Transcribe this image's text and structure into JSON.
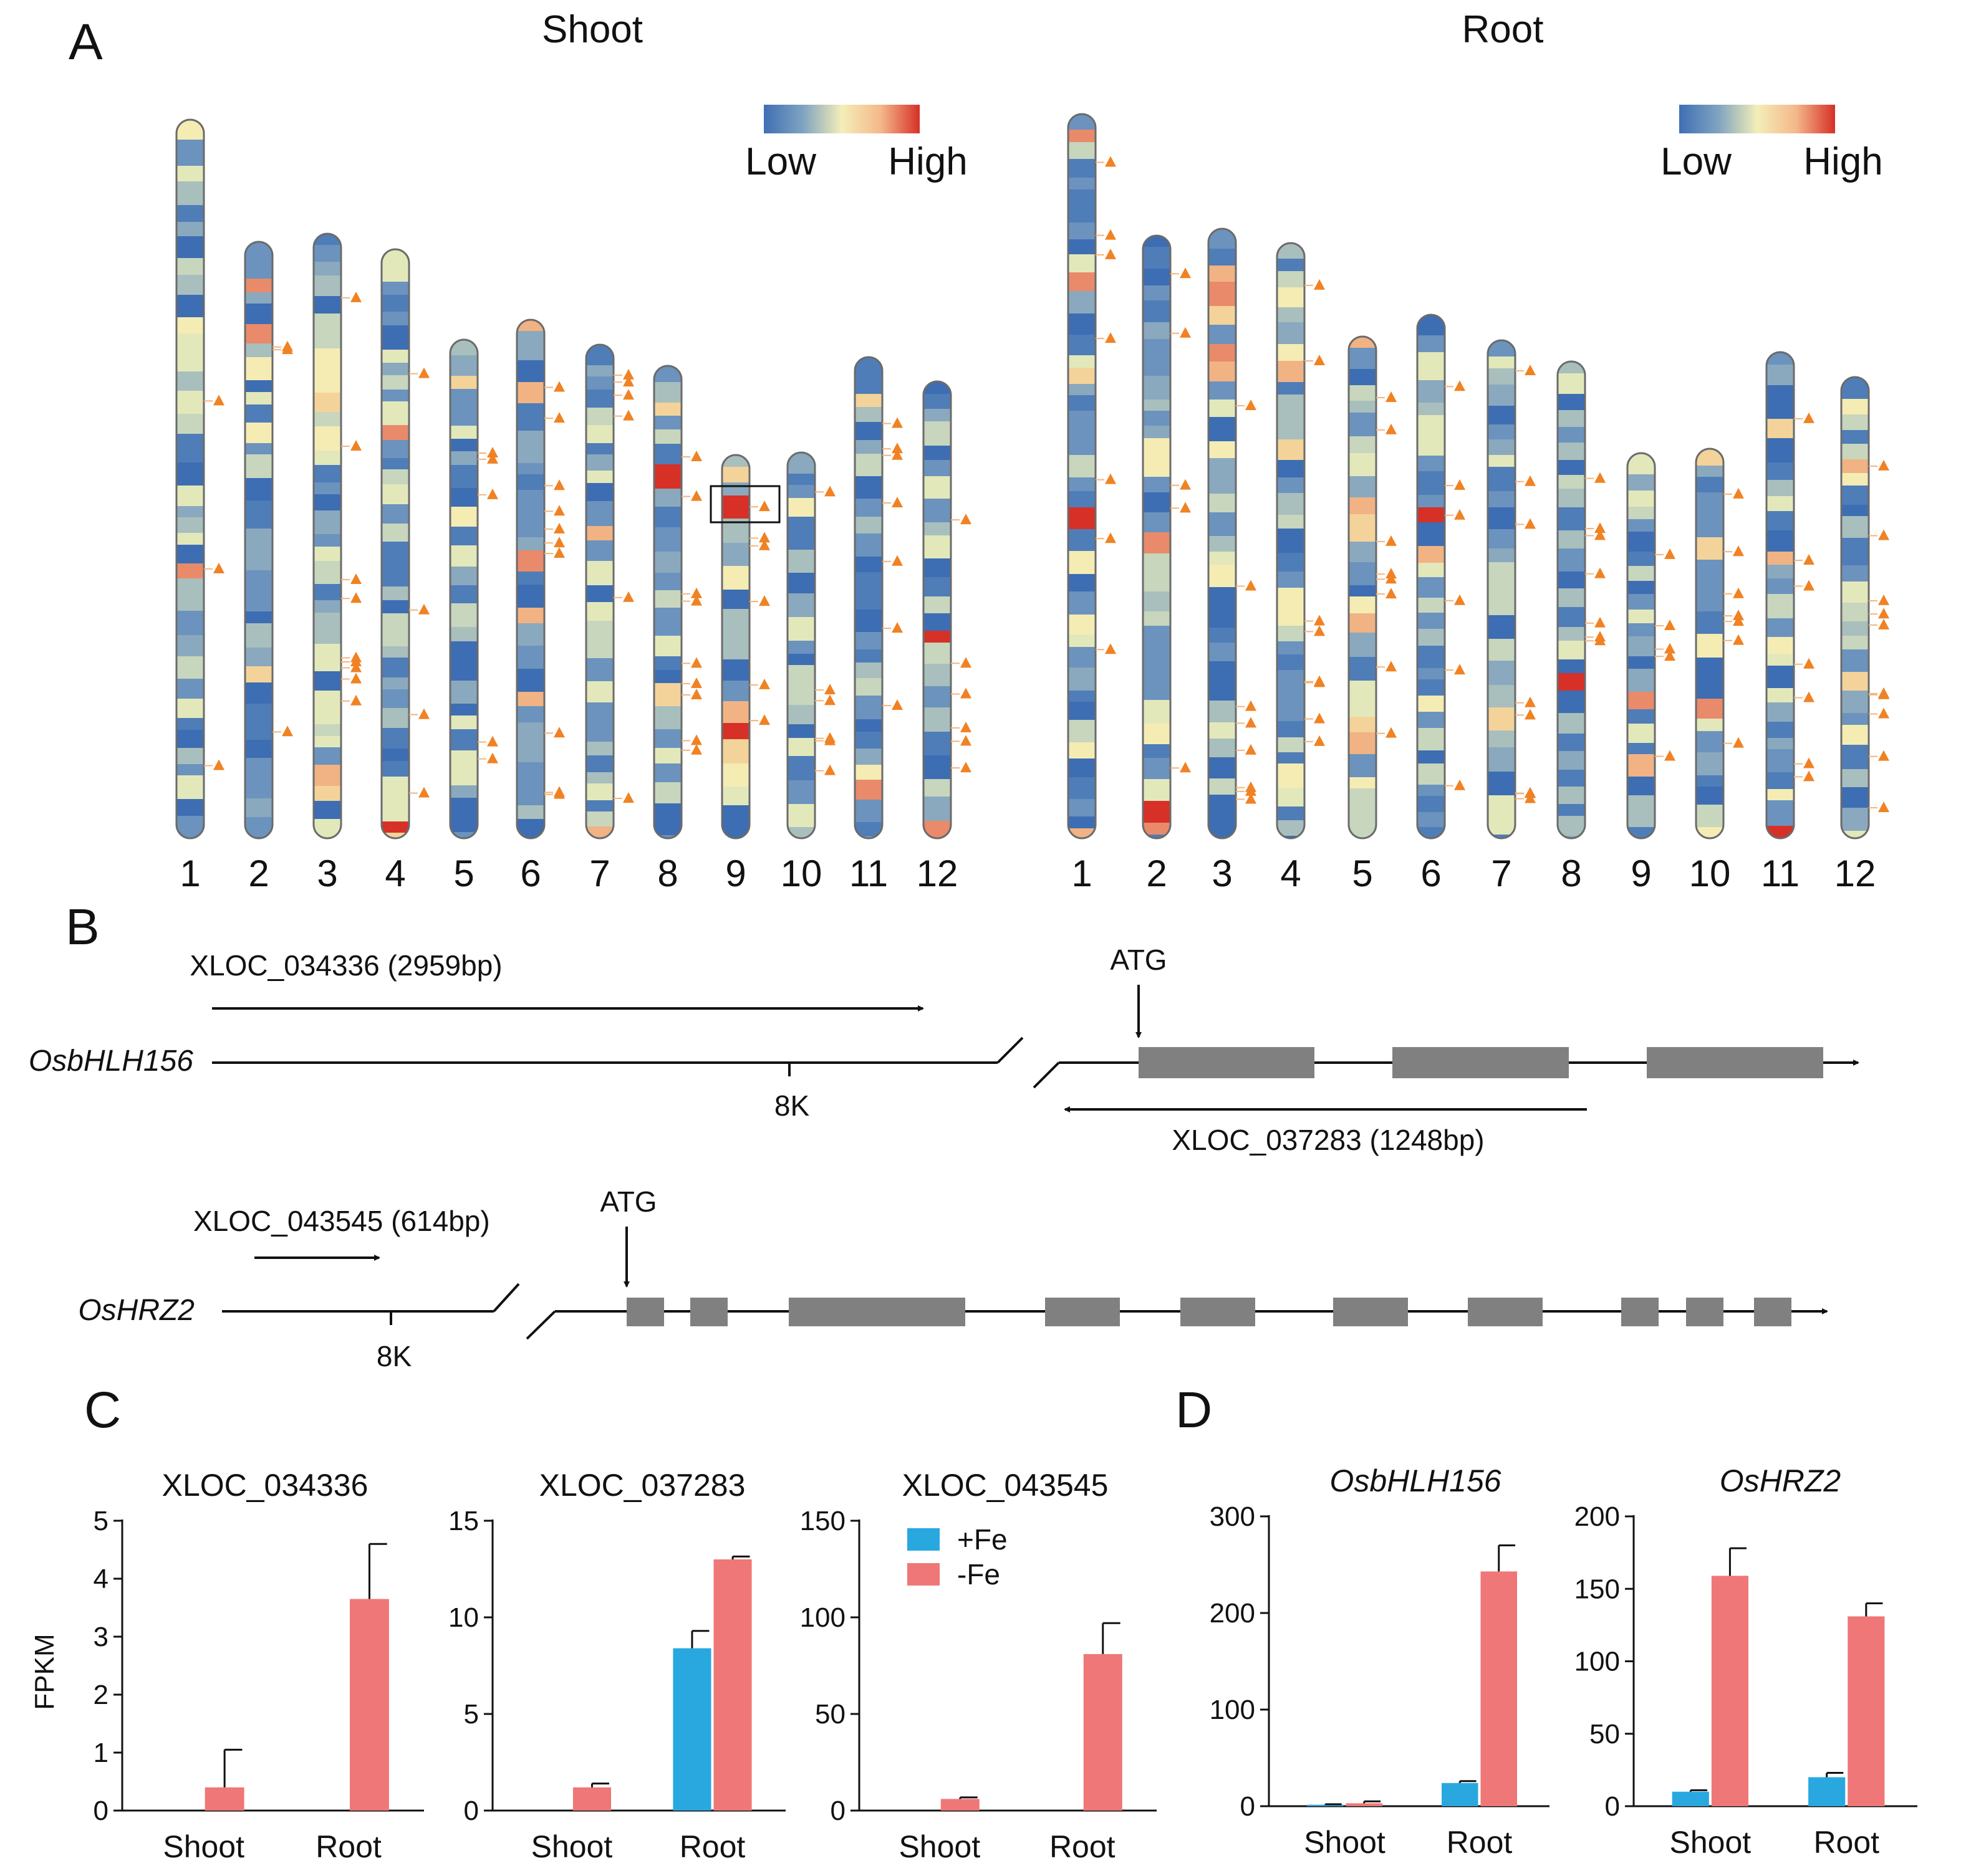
{
  "panel_letters": {
    "a": "A",
    "b": "B",
    "c": "C",
    "d": "D"
  },
  "panel_a": {
    "left_title": "Shoot",
    "right_title": "Root",
    "legend_low": "Low",
    "legend_high": "High",
    "colors": {
      "low": "#3f6fb4",
      "mid": "#f3eeb8",
      "high": "#d73027"
    },
    "chromosome_labels": [
      "1",
      "2",
      "3",
      "4",
      "5",
      "6",
      "7",
      "8",
      "9",
      "10",
      "11",
      "12"
    ],
    "marker_color": "#f08223"
  },
  "panel_b": {
    "gene1": {
      "name": "OsbHLH156",
      "lnc_upstream": "XLOC_034336 (2959bp)",
      "lnc_antisense": "XLOC_037283 (1248bp)",
      "atg": "ATG",
      "scale": "8K"
    },
    "gene2": {
      "name": "OsHRZ2",
      "lnc_upstream": "XLOC_043545 (614bp)",
      "atg": "ATG",
      "scale": "8K"
    },
    "exon_color": "#808080"
  },
  "legend": {
    "plus_fe": "+Fe",
    "minus_fe": "-Fe"
  },
  "series_colors": {
    "+Fe": "#29a8e0",
    "-Fe": "#ef7777"
  },
  "chart_data": [
    {
      "type": "bar",
      "title": "XLOC_034336",
      "title_italic": false,
      "ylabel": "FPKM",
      "categories": [
        "Shoot",
        "Root"
      ],
      "ylim": [
        0,
        5
      ],
      "yticks": [
        0,
        1,
        2,
        3,
        4,
        5
      ],
      "series": [
        {
          "name": "+Fe",
          "values": [
            0,
            0
          ],
          "errors": [
            0,
            0
          ]
        },
        {
          "name": "-Fe",
          "values": [
            0.4,
            3.65
          ],
          "errors": [
            0.65,
            0.95
          ]
        }
      ]
    },
    {
      "type": "bar",
      "title": "XLOC_037283",
      "title_italic": false,
      "ylabel": "",
      "categories": [
        "Shoot",
        "Root"
      ],
      "ylim": [
        0,
        15
      ],
      "yticks": [
        0,
        5,
        10,
        15
      ],
      "series": [
        {
          "name": "+Fe",
          "values": [
            0,
            8.4
          ],
          "errors": [
            0,
            0.9
          ]
        },
        {
          "name": "-Fe",
          "values": [
            1.2,
            13.0
          ],
          "errors": [
            0.2,
            0.15
          ]
        }
      ]
    },
    {
      "type": "bar",
      "title": "XLOC_043545",
      "title_italic": false,
      "ylabel": "",
      "categories": [
        "Shoot",
        "Root"
      ],
      "ylim": [
        0,
        150
      ],
      "yticks": [
        0,
        50,
        100,
        150
      ],
      "series": [
        {
          "name": "+Fe",
          "values": [
            0,
            0
          ],
          "errors": [
            0,
            0
          ]
        },
        {
          "name": "-Fe",
          "values": [
            6,
            81
          ],
          "errors": [
            0.8,
            16
          ]
        }
      ]
    },
    {
      "type": "bar",
      "title": "OsbHLH156",
      "title_italic": true,
      "ylabel": "",
      "categories": [
        "Shoot",
        "Root"
      ],
      "ylim": [
        0,
        300
      ],
      "yticks": [
        0,
        100,
        200,
        300
      ],
      "series": [
        {
          "name": "+Fe",
          "values": [
            1.5,
            24
          ],
          "errors": [
            0.5,
            2
          ]
        },
        {
          "name": "-Fe",
          "values": [
            3,
            243
          ],
          "errors": [
            2,
            27
          ]
        }
      ]
    },
    {
      "type": "bar",
      "title": "OsHRZ2",
      "title_italic": true,
      "ylabel": "",
      "categories": [
        "Shoot",
        "Root"
      ],
      "ylim": [
        0,
        200
      ],
      "yticks": [
        0,
        50,
        100,
        150,
        200
      ],
      "series": [
        {
          "name": "+Fe",
          "values": [
            10,
            20
          ],
          "errors": [
            1,
            3
          ]
        },
        {
          "name": "-Fe",
          "values": [
            159,
            131
          ],
          "errors": [
            19,
            9
          ]
        }
      ]
    }
  ]
}
